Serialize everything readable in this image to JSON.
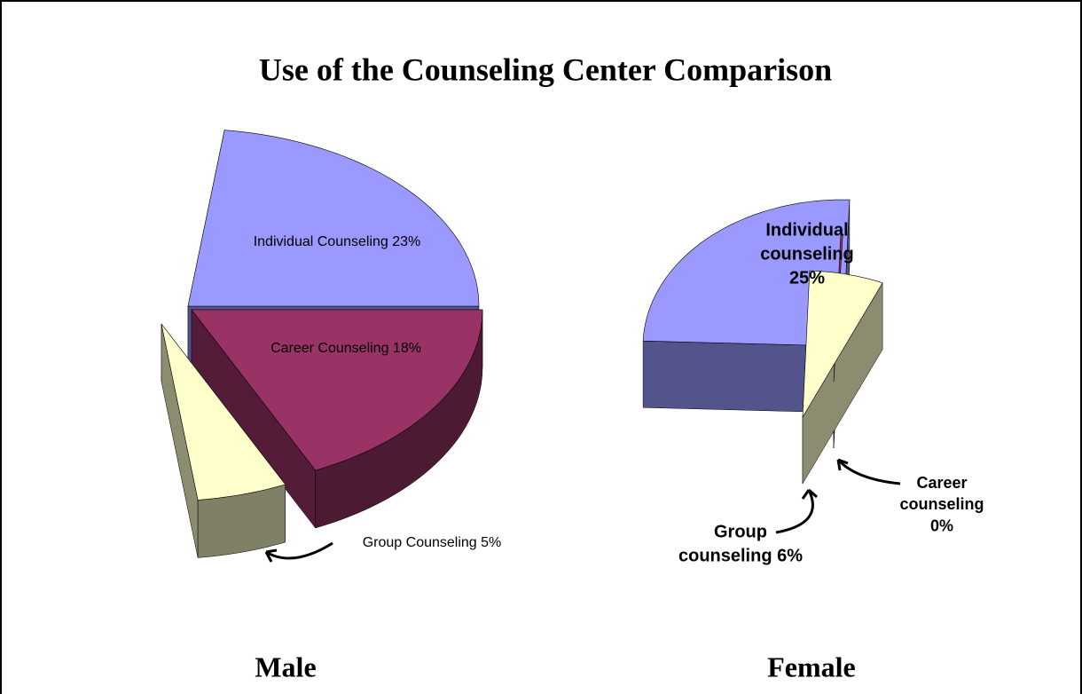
{
  "title": "Use of the Counseling Center Comparison",
  "chart_data": [
    {
      "type": "pie",
      "title": "Male",
      "values": [
        23,
        18,
        5
      ],
      "value_labels": [
        [
          "Individual Counseling 23%"
        ],
        [
          "Career Counseling 18%"
        ],
        [
          "Group Counseling 5%"
        ]
      ],
      "colors": [
        "#9999ff",
        "#993366",
        "#ffffcc"
      ]
    },
    {
      "type": "pie",
      "title": "Female",
      "values": [
        25,
        0,
        6
      ],
      "value_labels": [
        [
          "Individual",
          "counseling",
          "25%"
        ],
        [
          "Career",
          "counseling",
          "0%"
        ],
        [
          "Group",
          "counseling 6%"
        ]
      ],
      "colors": [
        "#9999ff",
        "#993366",
        "#ffffcc"
      ]
    }
  ]
}
